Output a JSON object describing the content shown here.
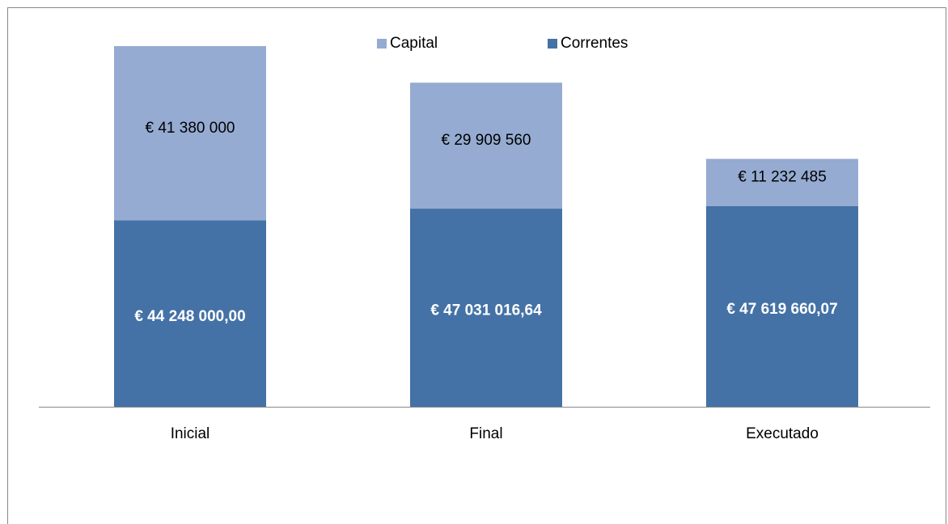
{
  "chart_data": {
    "type": "stacked_bar",
    "categories": [
      "Inicial",
      "Final",
      "Executado"
    ],
    "series": [
      {
        "name": "Correntes",
        "color": "#4472a6",
        "values": [
          44248000.0,
          47031016.64,
          47619660.07
        ],
        "value_labels": [
          "€ 44 248 000,00",
          "€ 47 031 016,64",
          "€ 47 619 660,07"
        ]
      },
      {
        "name": "Capital",
        "color": "#95abd2",
        "values": [
          41380000,
          29909560,
          11232485
        ],
        "value_labels": [
          "€ 41 380 000",
          "€ 29 909 560",
          "€ 11 232 485"
        ]
      }
    ],
    "legend": "top"
  }
}
